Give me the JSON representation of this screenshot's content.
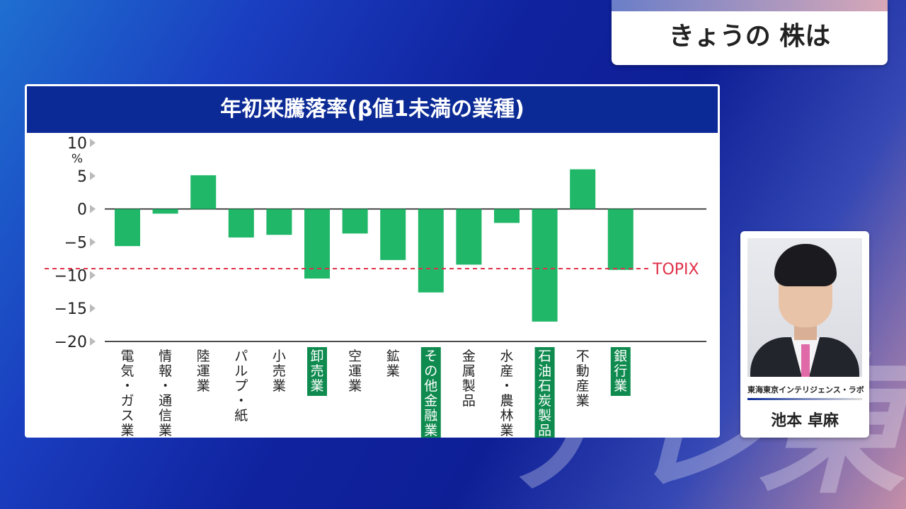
{
  "watermark": "テレ東",
  "segment_title": "きょうの 株は",
  "chart_data": {
    "type": "bar",
    "title": "年初来騰落率(β値1未満の業種)",
    "ylabel": "%",
    "ylim": [
      -20,
      10
    ],
    "yticks": [
      "10",
      "5",
      "0",
      "−5",
      "−10",
      "−15",
      "−20"
    ],
    "categories": [
      "電気・ガス業",
      "情報・通信業",
      "陸運業",
      "パルプ・紙",
      "小売業",
      "卸売業",
      "空運業",
      "鉱業",
      "その他金融業",
      "金属製品",
      "水産・農林業",
      "石油石炭製品",
      "不動産業",
      "銀行業"
    ],
    "values": [
      -5.6,
      -0.7,
      5.1,
      -4.3,
      -3.9,
      -10.5,
      -3.7,
      -7.7,
      -12.6,
      -8.4,
      -2.1,
      -17.0,
      6.0,
      -9.2
    ],
    "highlighted": [
      false,
      false,
      false,
      false,
      false,
      true,
      false,
      false,
      true,
      false,
      false,
      true,
      false,
      true
    ],
    "reference_line": {
      "label": "TOPIX",
      "value": -9.0
    },
    "colors": {
      "bar": "#20b768",
      "highlight_bg": "#0f8b4f",
      "reference": "#e0304a",
      "axis": "#111111"
    }
  },
  "presenter": {
    "org": "東海東京インテリジェンス・ラボ",
    "name": "池本 卓麻"
  }
}
